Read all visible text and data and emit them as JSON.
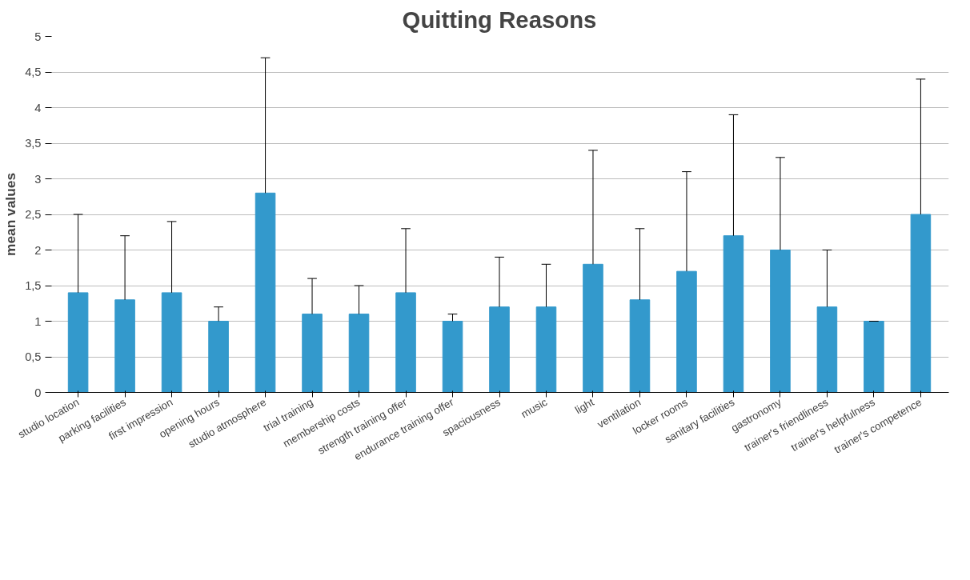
{
  "chart_data": {
    "type": "bar",
    "title": "Quitting Reasons",
    "ylabel": "mean values",
    "categories": [
      "studio location",
      "parking facilities",
      "first impression",
      "opening hours",
      "studio atmosphere",
      "trial training",
      "membership costs",
      "strength training offer",
      "endurance training offer",
      "spaciousness",
      "music",
      "light",
      "ventilation",
      "locker rooms",
      "sanitary facilities",
      "gastronomy",
      "trainer's friendliness",
      "trainer's helpfulness",
      "trainer's competence"
    ],
    "values": [
      1.4,
      1.3,
      1.4,
      1.0,
      2.8,
      1.1,
      1.1,
      1.4,
      1.0,
      1.2,
      1.2,
      1.8,
      1.3,
      1.7,
      2.2,
      2.0,
      1.2,
      1.0,
      2.5
    ],
    "errors": [
      [
        1.4,
        2.5
      ],
      [
        1.3,
        2.2
      ],
      [
        1.4,
        2.4
      ],
      [
        1.0,
        1.2
      ],
      [
        2.8,
        4.7
      ],
      [
        1.1,
        1.6
      ],
      [
        1.1,
        1.5
      ],
      [
        1.4,
        2.3
      ],
      [
        1.0,
        1.1
      ],
      [
        1.2,
        1.9
      ],
      [
        1.2,
        1.8
      ],
      [
        1.8,
        3.4
      ],
      [
        1.3,
        2.3
      ],
      [
        1.7,
        3.1
      ],
      [
        2.2,
        3.9
      ],
      [
        2.0,
        3.3
      ],
      [
        1.2,
        2.0
      ],
      [
        1.0,
        1.0
      ],
      [
        2.5,
        4.4
      ]
    ],
    "color": "#3399cc",
    "ylim": [
      0,
      5
    ],
    "yticks": [
      0,
      {
        "value": 0.5,
        "label": "0,5"
      },
      1,
      {
        "value": 1.5,
        "label": "1,5"
      },
      2,
      {
        "value": 2.5,
        "label": "2,5"
      },
      3,
      {
        "value": 3.5,
        "label": "3,5"
      },
      4,
      {
        "value": 4.5,
        "label": "4,5"
      },
      5
    ],
    "grid": "y"
  }
}
